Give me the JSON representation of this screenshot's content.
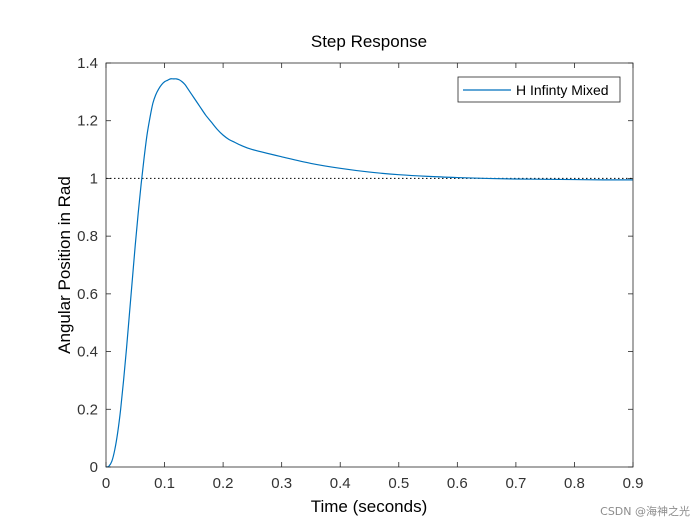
{
  "chart_data": {
    "type": "line",
    "title": "Step Response",
    "xlabel": "Time (seconds)",
    "ylabel": "Angular Position in Rad",
    "xlim": [
      0,
      0.9
    ],
    "ylim": [
      0,
      1.4
    ],
    "xticks": [
      0,
      0.1,
      0.2,
      0.3,
      0.4,
      0.5,
      0.6,
      0.7,
      0.8,
      0.9
    ],
    "xtick_labels": [
      "0",
      "0.1",
      "0.2",
      "0.3",
      "0.4",
      "0.5",
      "0.6",
      "0.7",
      "0.8",
      "0.9"
    ],
    "yticks": [
      0,
      0.2,
      0.4,
      0.6,
      0.8,
      1.0,
      1.2,
      1.4
    ],
    "ytick_labels": [
      "0",
      "0.2",
      "0.4",
      "0.6",
      "0.8",
      "1",
      "1.2",
      "1.4"
    ],
    "grid": false,
    "legend_position": "top-right",
    "reference_line": {
      "y": 1.0,
      "style": "dotted",
      "color": "#000000"
    },
    "series": [
      {
        "name": "H Infinty Mixed",
        "color": "#0072bd",
        "x": [
          0,
          0.005,
          0.01,
          0.015,
          0.02,
          0.025,
          0.03,
          0.035,
          0.04,
          0.045,
          0.05,
          0.055,
          0.06,
          0.065,
          0.07,
          0.075,
          0.08,
          0.085,
          0.09,
          0.095,
          0.1,
          0.105,
          0.11,
          0.115,
          0.12,
          0.125,
          0.13,
          0.135,
          0.14,
          0.145,
          0.15,
          0.16,
          0.17,
          0.18,
          0.19,
          0.2,
          0.21,
          0.22,
          0.23,
          0.25,
          0.3,
          0.35,
          0.4,
          0.45,
          0.5,
          0.55,
          0.6,
          0.65,
          0.7,
          0.75,
          0.8,
          0.85,
          0.9
        ],
        "y": [
          0,
          0.003,
          0.02,
          0.06,
          0.12,
          0.2,
          0.3,
          0.41,
          0.53,
          0.65,
          0.77,
          0.88,
          0.98,
          1.07,
          1.15,
          1.21,
          1.26,
          1.29,
          1.31,
          1.325,
          1.335,
          1.34,
          1.345,
          1.345,
          1.345,
          1.342,
          1.335,
          1.325,
          1.31,
          1.295,
          1.28,
          1.25,
          1.22,
          1.195,
          1.17,
          1.15,
          1.135,
          1.125,
          1.115,
          1.1,
          1.075,
          1.052,
          1.035,
          1.022,
          1.013,
          1.007,
          1.003,
          1.0,
          0.998,
          0.997,
          0.996,
          0.995,
          0.995
        ]
      }
    ]
  },
  "watermark": "CSDN @海神之光"
}
